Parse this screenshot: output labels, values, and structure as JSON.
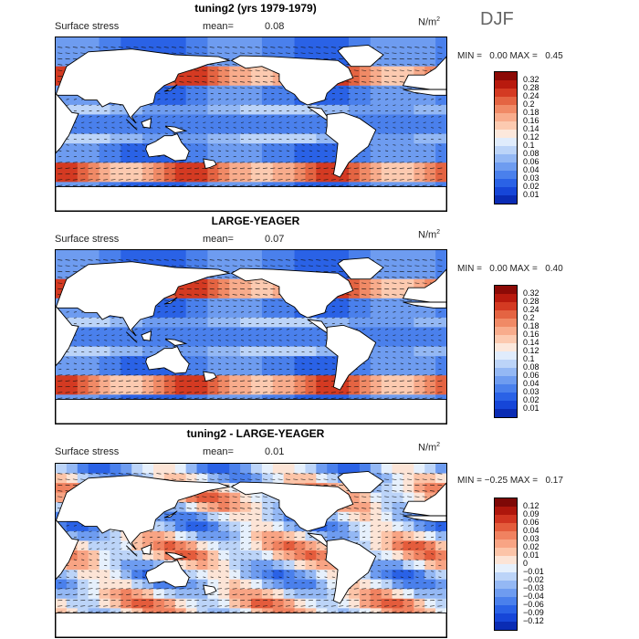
{
  "header": {
    "title": "tuning2 (yrs 1979-1979)",
    "season": "DJF"
  },
  "colors": {
    "positive_scale": [
      "#08146e",
      "#0a2cb4",
      "#1646d8",
      "#2a62e6",
      "#4a80ec",
      "#6e9cf0",
      "#94b8f4",
      "#bcd4f8",
      "#e0ecfc",
      "#fce8dc",
      "#fccab0",
      "#f8ac8c",
      "#f08a66",
      "#e46442",
      "#d43a22",
      "#b81a0e",
      "#8c0a06"
    ],
    "diff_scale": [
      "#08146e",
      "#0a2cb4",
      "#1646d8",
      "#2a62e6",
      "#4a80ec",
      "#6e9cf0",
      "#94b8f4",
      "#bcd4f8",
      "#e6f0fc",
      "#fce4d6",
      "#fcc4a8",
      "#f8a484",
      "#f08260",
      "#e45c3c",
      "#d03420",
      "#ae160c",
      "#7e0806"
    ],
    "land": "#ffffff",
    "coast": "#000000"
  },
  "panels": [
    {
      "title": "tuning2 (yrs 1979-1979)",
      "variable": "Surface stress",
      "mean_label": "mean=",
      "mean_value": "0.08",
      "units": "N/m",
      "units_sup": "2",
      "min_label": "MIN =",
      "min_value": "0.00",
      "max_label": "MAX =",
      "max_value": "0.45",
      "levels": [
        "0.32",
        "0.28",
        "0.24",
        "0.2",
        "0.18",
        "0.16",
        "0.14",
        "0.12",
        "0.1",
        "0.08",
        "0.06",
        "0.04",
        "0.03",
        "0.02",
        "0.01"
      ]
    },
    {
      "title": "LARGE-YEAGER",
      "variable": "Surface stress",
      "mean_label": "mean=",
      "mean_value": "0.07",
      "units": "N/m",
      "units_sup": "2",
      "min_label": "MIN =",
      "min_value": "0.00",
      "max_label": "MAX =",
      "max_value": "0.40",
      "levels": [
        "0.32",
        "0.28",
        "0.24",
        "0.2",
        "0.18",
        "0.16",
        "0.14",
        "0.12",
        "0.1",
        "0.08",
        "0.06",
        "0.04",
        "0.03",
        "0.02",
        "0.01"
      ]
    },
    {
      "title": "tuning2 - LARGE-YEAGER",
      "variable": "Surface stress",
      "mean_label": "mean=",
      "mean_value": "0.01",
      "units": "N/m",
      "units_sup": "2",
      "min_label": "MIN =",
      "min_value": "−0.25",
      "max_label": "MAX =",
      "max_value": "0.17",
      "levels": [
        "0.12",
        "0.09",
        "0.06",
        "0.04",
        "0.03",
        "0.02",
        "0.01",
        "0",
        "−0.01",
        "−0.02",
        "−0.03",
        "−0.04",
        "−0.06",
        "−0.09",
        "−0.12"
      ]
    }
  ]
}
